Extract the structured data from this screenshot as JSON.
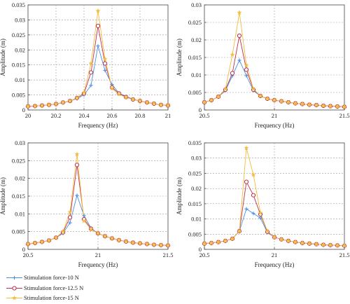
{
  "colors": {
    "s1": "#4a90e2",
    "s2": "#c0304a",
    "s3": "#f2bc3c"
  },
  "markers": {
    "s1": "plus",
    "s2": "circle",
    "s3": "star"
  },
  "legend": [
    {
      "key": "s1",
      "label": "Stimulation force-10 N"
    },
    {
      "key": "s2",
      "label": "Stimulation force-12.5 N"
    },
    {
      "key": "s3",
      "label": "Stimulation force-15 N"
    }
  ],
  "chart_data": [
    {
      "type": "line",
      "xlabel": "Frequency (Hz)",
      "ylabel": "Amplitude (m)",
      "xlim": [
        20,
        21
      ],
      "ylim": [
        0,
        0.035
      ],
      "xticks": [
        "20",
        "20.2",
        "20.4",
        "20.6",
        "20.8",
        "21"
      ],
      "xtick_values": [
        20,
        20.2,
        20.4,
        20.6,
        20.8,
        21
      ],
      "yticks": [
        "0",
        "0.005",
        "0.01",
        "0.015",
        "0.02",
        "0.025",
        "0.03",
        "0.035"
      ],
      "ytick_values": [
        0,
        0.005,
        0.01,
        0.015,
        0.02,
        0.025,
        0.03,
        0.035
      ],
      "grid": "dotted",
      "x": [
        20,
        20.05,
        20.1,
        20.15,
        20.2,
        20.25,
        20.3,
        20.35,
        20.4,
        20.45,
        20.5,
        20.55,
        20.6,
        20.65,
        20.7,
        20.75,
        20.8,
        20.85,
        20.9,
        20.95,
        21
      ],
      "series": [
        {
          "name": "Stimulation force-10 N",
          "key": "s1",
          "values": [
            0.0012,
            0.0013,
            0.0015,
            0.0017,
            0.002,
            0.0024,
            0.003,
            0.0038,
            0.005,
            0.0082,
            0.0213,
            0.0132,
            0.0085,
            0.0056,
            0.0045,
            0.0036,
            0.003,
            0.0025,
            0.0021,
            0.0017,
            0.0015
          ]
        },
        {
          "name": "Stimulation force-12.5 N",
          "key": "s2",
          "values": [
            0.0012,
            0.0013,
            0.0015,
            0.0017,
            0.002,
            0.0025,
            0.003,
            0.004,
            0.0055,
            0.0125,
            0.028,
            0.0155,
            0.0075,
            0.0055,
            0.0043,
            0.0035,
            0.003,
            0.0025,
            0.0021,
            0.0017,
            0.0015
          ]
        },
        {
          "name": "Stimulation force-15 N",
          "key": "s3",
          "values": [
            0.0012,
            0.0013,
            0.0015,
            0.0017,
            0.002,
            0.0025,
            0.003,
            0.004,
            0.0058,
            0.0155,
            0.033,
            0.017,
            0.0072,
            0.0052,
            0.0042,
            0.0035,
            0.003,
            0.0025,
            0.0021,
            0.0017,
            0.0015
          ]
        }
      ]
    },
    {
      "type": "line",
      "xlabel": "Frequency (Hz)",
      "ylabel": "Amplitude (m)",
      "xlim": [
        20.5,
        21.5
      ],
      "ylim": [
        0,
        0.03
      ],
      "xticks": [
        "20.5",
        "21",
        "21.5"
      ],
      "xtick_values": [
        20.5,
        21,
        21.5
      ],
      "yticks": [
        "0",
        "0.005",
        "0.01",
        "0.015",
        "0.02",
        "0.025",
        "0.03"
      ],
      "ytick_values": [
        0,
        0.005,
        0.01,
        0.015,
        0.02,
        0.025,
        0.03
      ],
      "grid": "dotted",
      "x": [
        20.5,
        20.55,
        20.6,
        20.65,
        20.7,
        20.75,
        20.8,
        20.85,
        20.9,
        20.95,
        21,
        21.05,
        21.1,
        21.15,
        21.2,
        21.25,
        21.3,
        21.35,
        21.4,
        21.45,
        21.5
      ],
      "series": [
        {
          "name": "Stimulation force-10 N",
          "key": "s1",
          "values": [
            0.0022,
            0.0028,
            0.0038,
            0.0055,
            0.0098,
            0.0142,
            0.0098,
            0.0055,
            0.004,
            0.0032,
            0.0028,
            0.0025,
            0.0022,
            0.0019,
            0.0017,
            0.0015,
            0.0014,
            0.0012,
            0.0011,
            0.001,
            0.0009
          ]
        },
        {
          "name": "Stimulation force-12.5 N",
          "key": "s2",
          "values": [
            0.0022,
            0.0028,
            0.0038,
            0.0058,
            0.0105,
            0.0212,
            0.0115,
            0.0058,
            0.004,
            0.0032,
            0.0028,
            0.0025,
            0.0022,
            0.0019,
            0.0017,
            0.0015,
            0.0014,
            0.0012,
            0.0011,
            0.001,
            0.0009
          ]
        },
        {
          "name": "Stimulation force-15 N",
          "key": "s3",
          "values": [
            0.0022,
            0.0028,
            0.0038,
            0.006,
            0.0158,
            0.0278,
            0.0128,
            0.006,
            0.004,
            0.0032,
            0.0028,
            0.0025,
            0.0022,
            0.0019,
            0.0017,
            0.0015,
            0.0014,
            0.0012,
            0.0011,
            0.001,
            0.0009
          ]
        }
      ]
    },
    {
      "type": "line",
      "xlabel": "Frequency (Hz)",
      "ylabel": "Amplitude (m)",
      "xlim": [
        20.5,
        21.5
      ],
      "ylim": [
        0,
        0.03
      ],
      "xticks": [
        "20.5",
        "21",
        "21.5"
      ],
      "xtick_values": [
        20.5,
        21,
        21.5
      ],
      "yticks": [
        "0",
        "0.005",
        "0.01",
        "0.015",
        "0.02",
        "0.025",
        "0.03"
      ],
      "ytick_values": [
        0,
        0.005,
        0.01,
        0.015,
        0.02,
        0.025,
        0.03
      ],
      "grid": "dotted",
      "x": [
        20.5,
        20.55,
        20.6,
        20.65,
        20.7,
        20.75,
        20.8,
        20.85,
        20.9,
        20.95,
        21,
        21.05,
        21.1,
        21.15,
        21.2,
        21.25,
        21.3,
        21.35,
        21.4,
        21.45,
        21.5
      ],
      "series": [
        {
          "name": "Stimulation force-10 N",
          "key": "s1",
          "values": [
            0.0015,
            0.0018,
            0.0021,
            0.0025,
            0.0033,
            0.0045,
            0.0075,
            0.0152,
            0.0095,
            0.006,
            0.0045,
            0.0037,
            0.0031,
            0.0026,
            0.0022,
            0.0019,
            0.0017,
            0.0015,
            0.0013,
            0.0012,
            0.0011
          ]
        },
        {
          "name": "Stimulation force-12.5 N",
          "key": "s2",
          "values": [
            0.0015,
            0.0018,
            0.0021,
            0.0025,
            0.0033,
            0.0048,
            0.009,
            0.0238,
            0.0085,
            0.0058,
            0.0045,
            0.0037,
            0.0031,
            0.0026,
            0.0022,
            0.0019,
            0.0017,
            0.0015,
            0.0013,
            0.0012,
            0.0011
          ]
        },
        {
          "name": "Stimulation force-15 N",
          "key": "s3",
          "values": [
            0.0015,
            0.0018,
            0.0021,
            0.0025,
            0.0033,
            0.005,
            0.0105,
            0.0268,
            0.008,
            0.0057,
            0.0045,
            0.0037,
            0.0031,
            0.0026,
            0.0022,
            0.0019,
            0.0017,
            0.0015,
            0.0013,
            0.0012,
            0.0011
          ]
        }
      ]
    },
    {
      "type": "line",
      "xlabel": "Frequency (Hz)",
      "ylabel": "Amplitude (m)",
      "xlim": [
        20.5,
        21.5
      ],
      "ylim": [
        0,
        0.035
      ],
      "xticks": [
        "20.5",
        "21",
        "21.5"
      ],
      "xtick_values": [
        20.5,
        21,
        21.5
      ],
      "yticks": [
        "0",
        "0.005",
        "0.01",
        "0.015",
        "0.02",
        "0.025",
        "0.03",
        "0.035"
      ],
      "ytick_values": [
        0,
        0.005,
        0.01,
        0.015,
        0.02,
        0.025,
        0.03,
        0.035
      ],
      "grid": "dotted",
      "x": [
        20.5,
        20.55,
        20.6,
        20.65,
        20.7,
        20.75,
        20.8,
        20.85,
        20.9,
        20.95,
        21,
        21.05,
        21.1,
        21.15,
        21.2,
        21.25,
        21.3,
        21.35,
        21.4,
        21.45,
        21.5
      ],
      "series": [
        {
          "name": "Stimulation force-10 N",
          "key": "s1",
          "values": [
            0.0019,
            0.0021,
            0.0024,
            0.0028,
            0.0035,
            0.006,
            0.0133,
            0.0118,
            0.0103,
            0.0055,
            0.004,
            0.0033,
            0.0028,
            0.0024,
            0.0021,
            0.0019,
            0.0017,
            0.0015,
            0.0014,
            0.0013,
            0.0012
          ]
        },
        {
          "name": "Stimulation force-12.5 N",
          "key": "s2",
          "values": [
            0.0019,
            0.0021,
            0.0024,
            0.0028,
            0.0035,
            0.006,
            0.0222,
            0.0178,
            0.0115,
            0.0058,
            0.004,
            0.0033,
            0.0028,
            0.0024,
            0.0021,
            0.0019,
            0.0017,
            0.0015,
            0.0014,
            0.0013,
            0.0012
          ]
        },
        {
          "name": "Stimulation force-15 N",
          "key": "s3",
          "values": [
            0.0019,
            0.0021,
            0.0024,
            0.0028,
            0.0035,
            0.006,
            0.0333,
            0.0245,
            0.012,
            0.006,
            0.004,
            0.0033,
            0.0028,
            0.0024,
            0.0021,
            0.0019,
            0.0017,
            0.0015,
            0.0014,
            0.0013,
            0.0012
          ]
        }
      ]
    }
  ]
}
